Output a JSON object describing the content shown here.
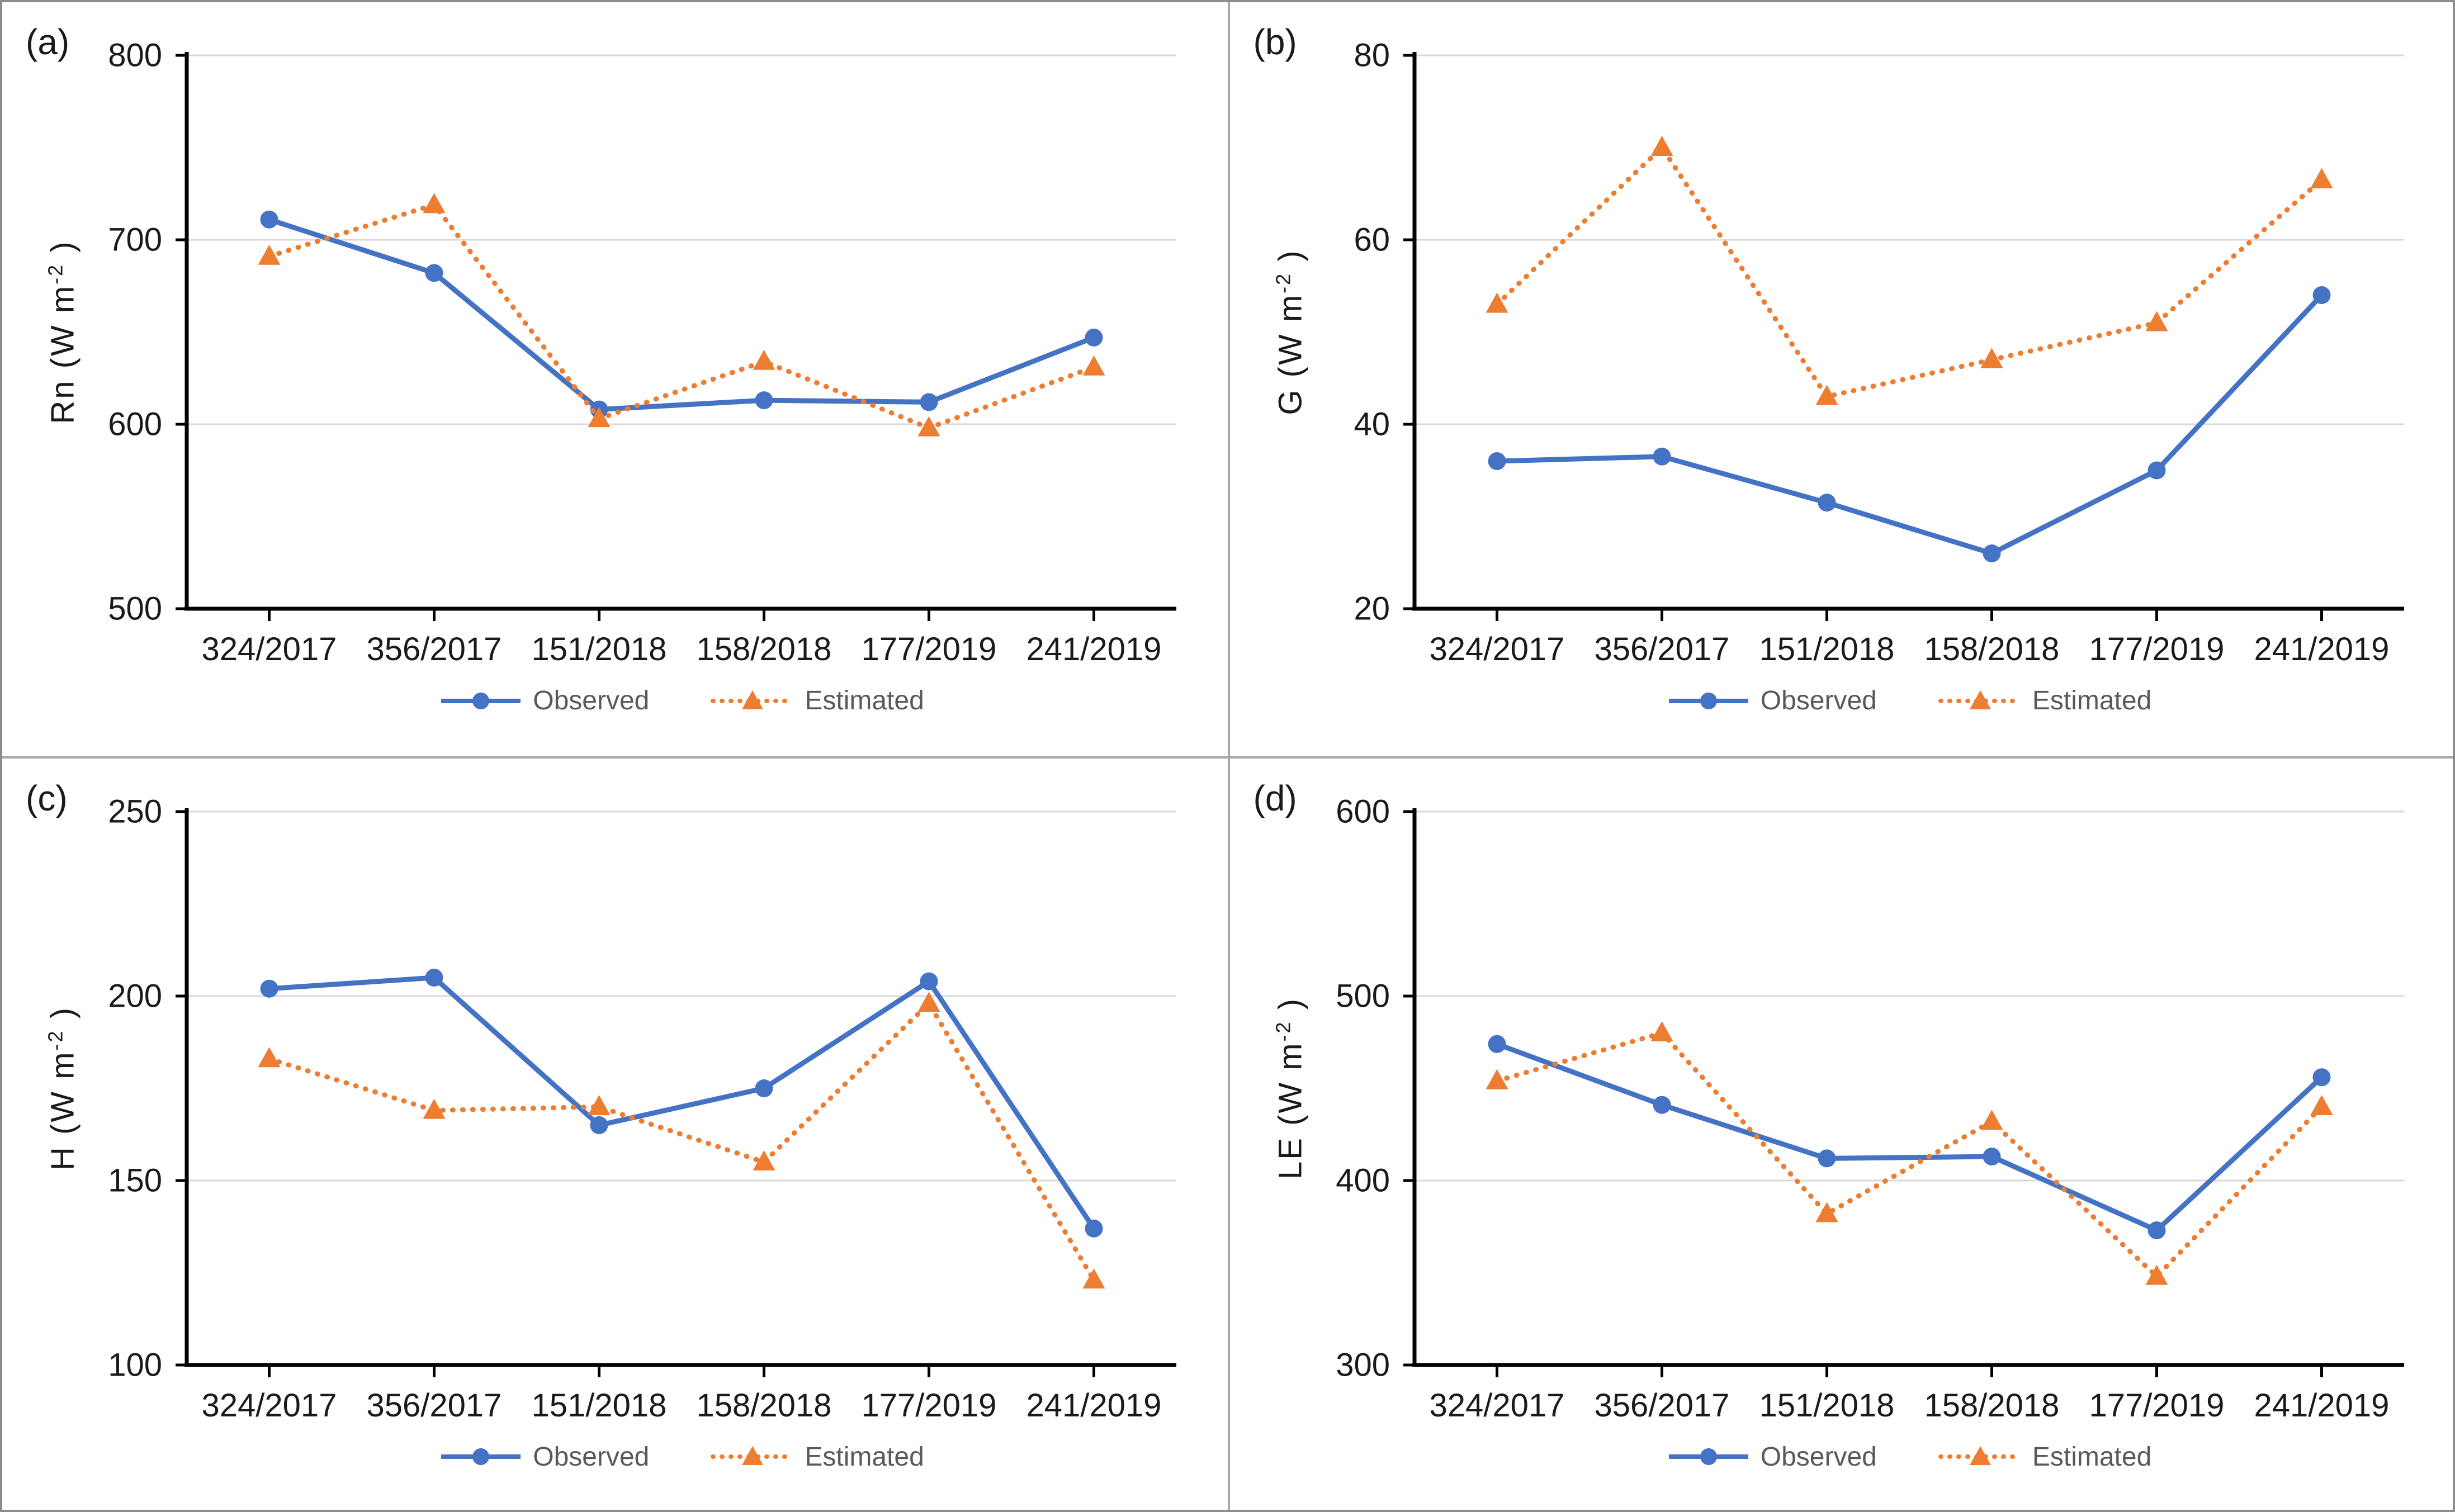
{
  "style": {
    "background": "#ffffff",
    "outer_border_color": "#8c8c8c",
    "panel_divider_color": "#a6a6a6",
    "gridline_color": "#d9d9d9",
    "axis_color": "#000000",
    "tick_label_color": "#1a1a1a",
    "panel_label_color": "#1a1a1a",
    "legend_text_color": "#595959",
    "observed_color": "#4472C4",
    "estimated_color": "#ED7D31"
  },
  "chart_data": [
    {
      "type": "line",
      "panel_label": "(a)",
      "y_name": "Rn",
      "y_unit_open": " (W m",
      "y_unit_sup": "-2",
      "y_unit_close": " )",
      "xlabel": "",
      "categories": [
        "324/2017",
        "356/2017",
        "151/2018",
        "158/2018",
        "177/2019",
        "241/2019"
      ],
      "ylim": [
        500,
        800
      ],
      "yticks": [
        500,
        600,
        700,
        800
      ],
      "grid": true,
      "legend_position": "bottom",
      "series": [
        {
          "name": "Observed",
          "marker": "circle",
          "line": "solid",
          "color": "#4472C4",
          "values": [
            711,
            682,
            608,
            613,
            612,
            647
          ]
        },
        {
          "name": "Estimated",
          "marker": "triangle",
          "line": "dotted",
          "color": "#ED7D31",
          "values": [
            691,
            719,
            603,
            634,
            598,
            631
          ]
        }
      ]
    },
    {
      "type": "line",
      "panel_label": "(b)",
      "y_name": "G",
      "y_unit_open": " (W m",
      "y_unit_sup": "-2",
      "y_unit_close": " )",
      "xlabel": "",
      "categories": [
        "324/2017",
        "356/2017",
        "151/2018",
        "158/2018",
        "177/2019",
        "241/2019"
      ],
      "ylim": [
        20,
        80
      ],
      "yticks": [
        20,
        40,
        60,
        80
      ],
      "grid": true,
      "legend_position": "bottom",
      "series": [
        {
          "name": "Observed",
          "marker": "circle",
          "line": "solid",
          "color": "#4472C4",
          "values": [
            36,
            36.5,
            31.5,
            26,
            35,
            54
          ]
        },
        {
          "name": "Estimated",
          "marker": "triangle",
          "line": "dotted",
          "color": "#ED7D31",
          "values": [
            53,
            70,
            43,
            47,
            51,
            66.5
          ]
        }
      ]
    },
    {
      "type": "line",
      "panel_label": "(c)",
      "y_name": "H",
      "y_unit_open": " (W m",
      "y_unit_sup": "-2",
      "y_unit_close": " )",
      "xlabel": "",
      "categories": [
        "324/2017",
        "356/2017",
        "151/2018",
        "158/2018",
        "177/2019",
        "241/2019"
      ],
      "ylim": [
        100,
        250
      ],
      "yticks": [
        100,
        150,
        200,
        250
      ],
      "grid": true,
      "legend_position": "bottom",
      "series": [
        {
          "name": "Observed",
          "marker": "circle",
          "line": "solid",
          "color": "#4472C4",
          "values": [
            202,
            205,
            165,
            175,
            204,
            137
          ]
        },
        {
          "name": "Estimated",
          "marker": "triangle",
          "line": "dotted",
          "color": "#ED7D31",
          "values": [
            183,
            169,
            170,
            155,
            198,
            123
          ]
        }
      ]
    },
    {
      "type": "line",
      "panel_label": "(d)",
      "y_name": "LE",
      "y_unit_open": " (W m",
      "y_unit_sup": "-2",
      "y_unit_close": " )",
      "xlabel": "",
      "categories": [
        "324/2017",
        "356/2017",
        "151/2018",
        "158/2018",
        "177/2019",
        "241/2019"
      ],
      "ylim": [
        300,
        600
      ],
      "yticks": [
        300,
        400,
        500,
        600
      ],
      "grid": true,
      "legend_position": "bottom",
      "series": [
        {
          "name": "Observed",
          "marker": "circle",
          "line": "solid",
          "color": "#4472C4",
          "values": [
            474,
            441,
            412,
            413,
            373,
            456
          ]
        },
        {
          "name": "Estimated",
          "marker": "triangle",
          "line": "dotted",
          "color": "#ED7D31",
          "values": [
            454,
            480,
            382,
            432,
            348,
            440
          ]
        }
      ]
    }
  ]
}
